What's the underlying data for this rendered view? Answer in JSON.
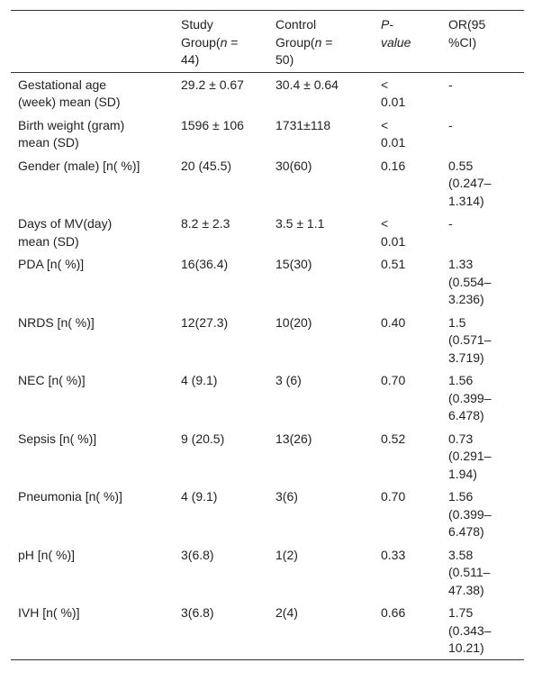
{
  "table": {
    "header": [
      [
        "Study Group(",
        "n",
        " = 44)"
      ],
      [
        "Control Group(",
        "n",
        " = 50)"
      ],
      [
        "P",
        "-",
        "value"
      ],
      [
        "OR(95 %CI)"
      ]
    ],
    "rows": [
      [
        "Gestational age (week) mean (SD)",
        "29.2 ± 0.67",
        "30.4 ± 0.64",
        "< 0.01",
        "-"
      ],
      [
        "Birth weight (gram) mean (SD)",
        "1596 ± 106",
        "1731±118",
        "< 0.01",
        "-"
      ],
      [
        "Gender (male) [n( %)]",
        "20 (45.5)",
        "30(60)",
        "0.16",
        "0.55 (0.247–1.314)"
      ],
      [
        "Days of MV(day) mean (SD)",
        "8.2 ± 2.3",
        "3.5 ± 1.1",
        "< 0.01",
        "-"
      ],
      [
        "PDA [n( %)]",
        "16(36.4)",
        "15(30)",
        "0.51",
        "1.33 (0.554–3.236)"
      ],
      [
        "NRDS [n( %)]",
        "12(27.3)",
        "10(20)",
        "0.40",
        "1.5 (0.571–3.719)"
      ],
      [
        "NEC [n( %)]",
        "4 (9.1)",
        "3 (6)",
        "0.70",
        "1.56 (0.399–6.478)"
      ],
      [
        "Sepsis [n( %)]",
        "9 (20.5)",
        "13(26)",
        "0.52",
        "0.73 (0.291–1.94)"
      ],
      [
        "Pneumonia [n( %)]",
        "4 (9.1)",
        "3(6)",
        "0.70",
        "1.56 (0.399–6.478)"
      ],
      [
        "pH [n( %)]",
        "3(6.8)",
        "1(2)",
        "0.33",
        "3.58 (0.511–47.38)"
      ],
      [
        "IVH [n( %)]",
        "3(6.8)",
        "2(4)",
        "0.66",
        "1.75 (0.343–10.21)"
      ]
    ]
  }
}
